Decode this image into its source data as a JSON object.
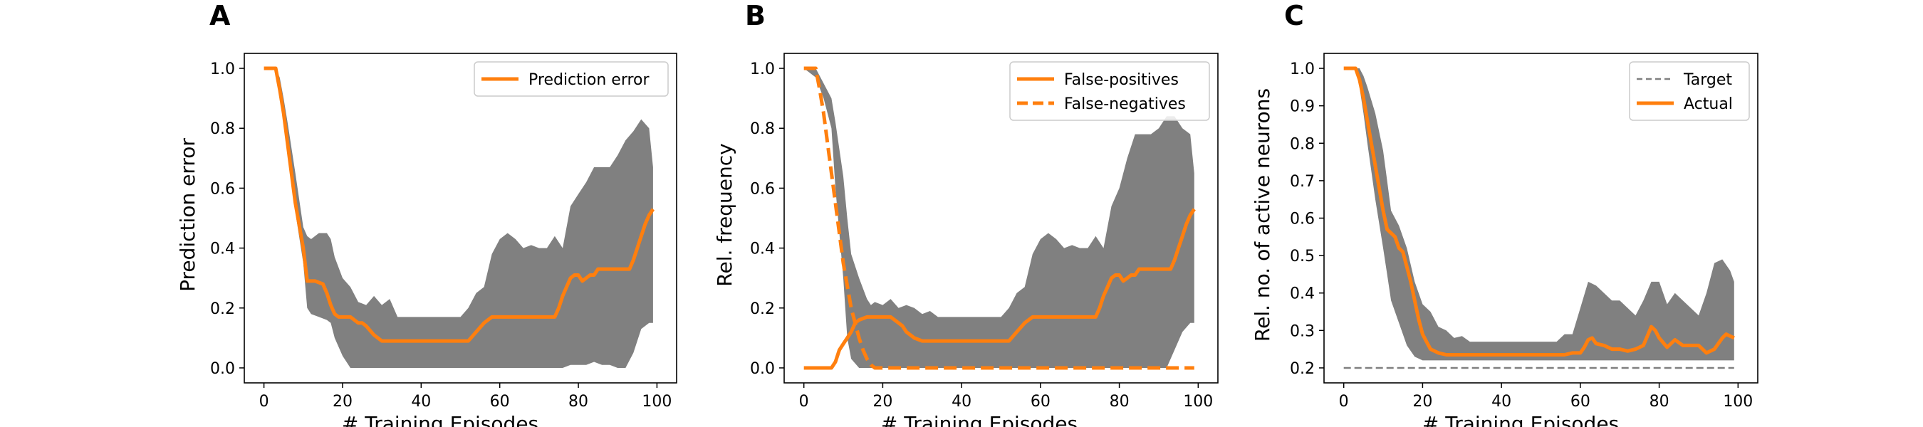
{
  "colors": {
    "accent": "#ff7f0e",
    "band": "#808080",
    "target": "#808080"
  },
  "chart_data": [
    {
      "type": "line",
      "panel_label": "A",
      "xlabel": "# Training Episodes",
      "ylabel": "Prediction error",
      "xlim": [
        -5,
        105
      ],
      "ylim": [
        -0.05,
        1.05
      ],
      "xticks": [
        0,
        20,
        40,
        60,
        80,
        100
      ],
      "yticks": [
        0.0,
        0.2,
        0.4,
        0.6,
        0.8,
        1.0
      ],
      "ytick_labels": [
        "0.0",
        "0.2",
        "0.4",
        "0.6",
        "0.8",
        "1.0"
      ],
      "legend": {
        "placement": "upper-right"
      },
      "series": [
        {
          "name": "Prediction error",
          "style": "solid",
          "x": [
            0,
            3,
            4,
            5,
            6,
            8,
            10,
            11,
            12,
            13,
            15,
            16,
            17,
            18,
            19,
            20,
            22,
            24,
            25,
            26,
            28,
            30,
            40,
            50,
            52,
            54,
            56,
            58,
            60,
            70,
            73,
            74,
            75,
            76,
            77,
            78,
            79,
            80,
            81,
            82,
            83,
            84,
            85,
            86,
            90,
            92,
            93,
            94,
            95,
            96,
            97,
            98,
            99
          ],
          "y": [
            1.0,
            1.0,
            0.93,
            0.85,
            0.75,
            0.55,
            0.4,
            0.29,
            0.29,
            0.29,
            0.28,
            0.25,
            0.21,
            0.18,
            0.17,
            0.17,
            0.17,
            0.15,
            0.15,
            0.14,
            0.11,
            0.09,
            0.09,
            0.09,
            0.09,
            0.12,
            0.15,
            0.17,
            0.17,
            0.17,
            0.17,
            0.17,
            0.2,
            0.24,
            0.27,
            0.3,
            0.31,
            0.31,
            0.29,
            0.3,
            0.31,
            0.31,
            0.33,
            0.33,
            0.33,
            0.33,
            0.33,
            0.36,
            0.4,
            0.44,
            0.48,
            0.51,
            0.53
          ]
        }
      ],
      "band": {
        "x": [
          0,
          3,
          4,
          5,
          6,
          8,
          10,
          11,
          12,
          14,
          16,
          17,
          18,
          20,
          22,
          24,
          26,
          28,
          30,
          32,
          34,
          36,
          38,
          40,
          50,
          52,
          54,
          56,
          58,
          60,
          62,
          64,
          66,
          68,
          70,
          72,
          74,
          76,
          78,
          80,
          82,
          84,
          86,
          88,
          90,
          92,
          94,
          96,
          98,
          99
        ],
        "upper": [
          1.0,
          1.0,
          0.97,
          0.9,
          0.82,
          0.65,
          0.47,
          0.44,
          0.43,
          0.45,
          0.45,
          0.43,
          0.37,
          0.3,
          0.27,
          0.22,
          0.21,
          0.24,
          0.21,
          0.23,
          0.17,
          0.17,
          0.17,
          0.17,
          0.17,
          0.2,
          0.25,
          0.27,
          0.38,
          0.43,
          0.45,
          0.43,
          0.4,
          0.41,
          0.4,
          0.4,
          0.44,
          0.4,
          0.54,
          0.58,
          0.62,
          0.67,
          0.67,
          0.67,
          0.71,
          0.76,
          0.79,
          0.83,
          0.8,
          0.67
        ],
        "lower": [
          1.0,
          1.0,
          0.92,
          0.83,
          0.72,
          0.52,
          0.35,
          0.2,
          0.18,
          0.17,
          0.16,
          0.15,
          0.1,
          0.04,
          0.0,
          0.0,
          0.0,
          0.0,
          0.0,
          0.0,
          0.0,
          0.0,
          0.0,
          0.0,
          0.0,
          0.0,
          0.0,
          0.0,
          0.0,
          0.0,
          0.0,
          0.0,
          0.0,
          0.0,
          0.0,
          0.0,
          0.0,
          0.0,
          0.01,
          0.01,
          0.01,
          0.02,
          0.01,
          0.01,
          0.0,
          0.0,
          0.05,
          0.13,
          0.15,
          0.15
        ]
      }
    },
    {
      "type": "line",
      "panel_label": "B",
      "xlabel": "# Training Episodes",
      "ylabel": "Rel. frequency",
      "xlim": [
        -5,
        105
      ],
      "ylim": [
        -0.05,
        1.05
      ],
      "xticks": [
        0,
        20,
        40,
        60,
        80,
        100
      ],
      "yticks": [
        0.0,
        0.2,
        0.4,
        0.6,
        0.8,
        1.0
      ],
      "ytick_labels": [
        "0.0",
        "0.2",
        "0.4",
        "0.6",
        "0.8",
        "1.0"
      ],
      "legend": {
        "placement": "upper-right"
      },
      "series": [
        {
          "name": "False-positives",
          "style": "solid",
          "x": [
            0,
            6,
            7,
            8,
            9,
            10,
            11,
            12,
            13,
            14,
            16,
            18,
            20,
            22,
            24,
            25,
            26,
            28,
            30,
            40,
            50,
            52,
            54,
            56,
            58,
            60,
            70,
            73,
            74,
            75,
            76,
            77,
            78,
            79,
            80,
            81,
            82,
            83,
            84,
            85,
            86,
            90,
            92,
            93,
            94,
            95,
            96,
            97,
            98,
            99
          ],
          "y": [
            0.0,
            0.0,
            0.0,
            0.02,
            0.06,
            0.08,
            0.1,
            0.12,
            0.15,
            0.16,
            0.17,
            0.17,
            0.17,
            0.17,
            0.15,
            0.14,
            0.12,
            0.1,
            0.09,
            0.09,
            0.09,
            0.09,
            0.12,
            0.15,
            0.17,
            0.17,
            0.17,
            0.17,
            0.17,
            0.2,
            0.24,
            0.27,
            0.3,
            0.31,
            0.31,
            0.29,
            0.3,
            0.31,
            0.31,
            0.33,
            0.33,
            0.33,
            0.33,
            0.33,
            0.36,
            0.4,
            0.44,
            0.48,
            0.51,
            0.53
          ]
        },
        {
          "name": "False-negatives",
          "style": "dashed",
          "x": [
            0,
            3,
            4,
            5,
            6,
            8,
            10,
            12,
            14,
            15,
            16,
            17,
            18,
            20,
            30,
            40,
            50,
            60,
            70,
            80,
            90,
            99
          ],
          "y": [
            1.0,
            1.0,
            0.93,
            0.85,
            0.75,
            0.55,
            0.35,
            0.2,
            0.1,
            0.06,
            0.03,
            0.01,
            0.0,
            0.0,
            0.0,
            0.0,
            0.0,
            0.0,
            0.0,
            0.0,
            0.0,
            0.0
          ]
        }
      ],
      "band": {
        "x": [
          0,
          3,
          5,
          7,
          8,
          10,
          11,
          12,
          14,
          16,
          17,
          18,
          20,
          22,
          24,
          26,
          28,
          30,
          32,
          34,
          36,
          38,
          40,
          50,
          52,
          54,
          56,
          58,
          60,
          62,
          64,
          66,
          68,
          70,
          72,
          74,
          76,
          78,
          80,
          82,
          84,
          86,
          88,
          90,
          92,
          94,
          96,
          98,
          99
        ],
        "upper": [
          1.0,
          1.0,
          0.95,
          0.9,
          0.82,
          0.64,
          0.5,
          0.38,
          0.3,
          0.23,
          0.21,
          0.22,
          0.21,
          0.23,
          0.2,
          0.21,
          0.2,
          0.18,
          0.19,
          0.17,
          0.17,
          0.17,
          0.17,
          0.17,
          0.2,
          0.25,
          0.27,
          0.38,
          0.43,
          0.45,
          0.43,
          0.4,
          0.41,
          0.4,
          0.4,
          0.44,
          0.4,
          0.54,
          0.6,
          0.7,
          0.78,
          0.78,
          0.78,
          0.8,
          0.84,
          0.84,
          0.8,
          0.78,
          0.65
        ],
        "lower": [
          1.0,
          0.97,
          0.9,
          0.8,
          0.6,
          0.3,
          0.1,
          0.03,
          0.0,
          0.0,
          0.0,
          0.0,
          0.0,
          0.0,
          0.0,
          0.0,
          0.0,
          0.0,
          0.0,
          0.0,
          0.0,
          0.0,
          0.0,
          0.0,
          0.0,
          0.0,
          0.0,
          0.0,
          0.0,
          0.0,
          0.0,
          0.0,
          0.0,
          0.0,
          0.0,
          0.0,
          0.0,
          0.0,
          0.0,
          0.0,
          0.0,
          0.0,
          0.0,
          0.0,
          0.0,
          0.06,
          0.12,
          0.15,
          0.15
        ]
      }
    },
    {
      "type": "line",
      "panel_label": "C",
      "xlabel": "# Training Episodes",
      "ylabel": "Rel. no. of active neurons",
      "xlim": [
        -5,
        105
      ],
      "ylim": [
        0.16,
        1.04
      ],
      "xticks": [
        0,
        20,
        40,
        60,
        80,
        100
      ],
      "yticks": [
        0.2,
        0.3,
        0.4,
        0.5,
        0.6,
        0.7,
        0.8,
        0.9,
        1.0
      ],
      "ytick_labels": [
        "0.2",
        "0.3",
        "0.4",
        "0.5",
        "0.6",
        "0.7",
        "0.8",
        "0.9",
        "1.0"
      ],
      "legend": {
        "placement": "upper-right"
      },
      "series": [
        {
          "name": "Target",
          "style": "dashed",
          "x": [
            0,
            99
          ],
          "y": [
            0.2,
            0.2
          ]
        },
        {
          "name": "Actual",
          "style": "solid",
          "x": [
            0,
            3,
            4,
            5,
            6,
            7,
            8,
            9,
            10,
            11,
            12,
            13,
            14,
            15,
            16,
            17,
            18,
            19,
            20,
            21,
            22,
            24,
            26,
            30,
            40,
            50,
            56,
            58,
            60,
            61,
            62,
            63,
            64,
            66,
            68,
            70,
            72,
            74,
            76,
            77,
            78,
            79,
            80,
            82,
            84,
            86,
            88,
            90,
            92,
            94,
            96,
            97,
            98,
            99
          ],
          "y": [
            1.0,
            1.0,
            0.97,
            0.92,
            0.86,
            0.8,
            0.74,
            0.68,
            0.62,
            0.57,
            0.56,
            0.55,
            0.52,
            0.51,
            0.47,
            0.43,
            0.38,
            0.33,
            0.29,
            0.27,
            0.25,
            0.24,
            0.235,
            0.235,
            0.235,
            0.235,
            0.235,
            0.24,
            0.24,
            0.255,
            0.275,
            0.28,
            0.265,
            0.26,
            0.25,
            0.25,
            0.245,
            0.25,
            0.26,
            0.285,
            0.31,
            0.3,
            0.28,
            0.255,
            0.275,
            0.26,
            0.26,
            0.26,
            0.24,
            0.25,
            0.28,
            0.29,
            0.285,
            0.28
          ]
        }
      ],
      "band": {
        "x": [
          0,
          3,
          4,
          5,
          6,
          8,
          10,
          11,
          12,
          14,
          16,
          18,
          20,
          22,
          24,
          26,
          28,
          30,
          32,
          40,
          50,
          54,
          56,
          58,
          60,
          62,
          64,
          66,
          68,
          70,
          72,
          74,
          76,
          78,
          80,
          82,
          84,
          86,
          88,
          90,
          92,
          94,
          96,
          98,
          99
        ],
        "upper": [
          1.0,
          1.0,
          1.0,
          0.98,
          0.95,
          0.88,
          0.78,
          0.7,
          0.62,
          0.58,
          0.52,
          0.43,
          0.37,
          0.35,
          0.31,
          0.3,
          0.28,
          0.285,
          0.27,
          0.27,
          0.27,
          0.27,
          0.29,
          0.29,
          0.36,
          0.43,
          0.42,
          0.4,
          0.38,
          0.38,
          0.36,
          0.34,
          0.38,
          0.43,
          0.43,
          0.37,
          0.4,
          0.38,
          0.36,
          0.34,
          0.4,
          0.48,
          0.49,
          0.46,
          0.43
        ],
        "lower": [
          1.0,
          1.0,
          0.95,
          0.88,
          0.8,
          0.65,
          0.52,
          0.45,
          0.38,
          0.32,
          0.26,
          0.23,
          0.22,
          0.22,
          0.22,
          0.22,
          0.22,
          0.22,
          0.22,
          0.22,
          0.22,
          0.22,
          0.22,
          0.22,
          0.22,
          0.22,
          0.22,
          0.22,
          0.22,
          0.22,
          0.22,
          0.22,
          0.22,
          0.22,
          0.22,
          0.22,
          0.22,
          0.22,
          0.22,
          0.22,
          0.22,
          0.22,
          0.22,
          0.22,
          0.22
        ]
      }
    }
  ]
}
